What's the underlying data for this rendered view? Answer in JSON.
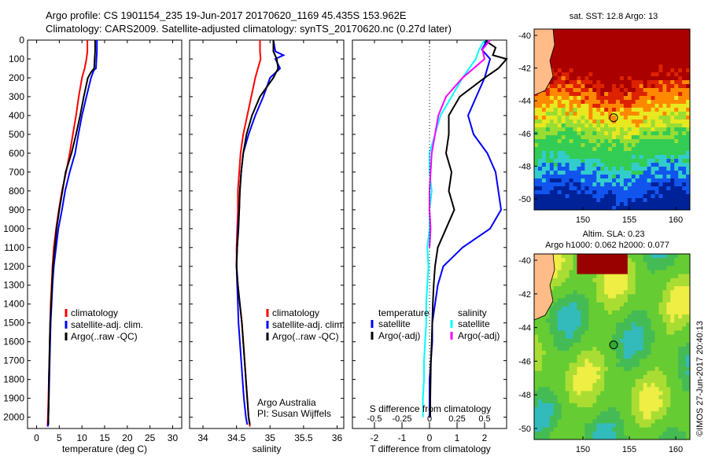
{
  "header": {
    "line1": "Argo profile: CS 1901154_235 19-Jun-2017 20170620_1169 45.435S 153.962E",
    "line2": "Climatology: CARS2009. Satellite-adjusted climatology: synTS_20170620.nc (0.27d later)"
  },
  "colors": {
    "climatology": "#ff0000",
    "satellite": "#0000ff",
    "argo": "#000000",
    "salinity_satellite": "#00ffff",
    "salinity_argo": "#ff00ff"
  },
  "depth_axis": {
    "ticks": [
      "0",
      "100",
      "200",
      "300",
      "400",
      "500",
      "600",
      "700",
      "800",
      "900",
      "1000",
      "1100",
      "1200",
      "1300",
      "1400",
      "1500",
      "1600",
      "1700",
      "1800",
      "1900",
      "2000"
    ],
    "ylim": [
      0,
      2060
    ]
  },
  "chart_data": [
    {
      "type": "line",
      "id": "temperature",
      "xlabel": "temperature (deg C)",
      "xlim": [
        -2,
        32
      ],
      "xticks": [
        "0",
        "5",
        "10",
        "15",
        "20",
        "25",
        "30"
      ],
      "xtick_values": [
        0,
        5,
        10,
        15,
        20,
        25,
        30
      ],
      "legend": [
        "climatology",
        "satellite-adj. clim.",
        "Argo(..raw -QC)"
      ],
      "series": [
        {
          "name": "climatology",
          "color": "#ff0000",
          "depth": [
            0,
            60,
            100,
            150,
            200,
            300,
            400,
            500,
            600,
            700,
            800,
            900,
            1000,
            1100,
            1200,
            1300,
            1400,
            1500,
            1600,
            1700,
            1800,
            1900,
            2000,
            2050
          ],
          "values": [
            11.2,
            11.2,
            11.0,
            10.6,
            10.0,
            9.3,
            8.7,
            8.0,
            7.3,
            6.5,
            5.6,
            4.9,
            4.3,
            3.8,
            3.5,
            3.3,
            3.1,
            3.0,
            2.9,
            2.8,
            2.7,
            2.6,
            2.5,
            2.4
          ]
        },
        {
          "name": "satellite-adj. clim.",
          "color": "#0000ff",
          "depth": [
            0,
            60,
            100,
            150,
            160,
            200,
            300,
            400,
            500,
            600,
            700,
            800,
            900,
            1000,
            1100,
            1200,
            1300,
            1400,
            1500,
            1600,
            1700,
            1800,
            1900,
            2000,
            2050
          ],
          "values": [
            13.3,
            13.3,
            13.2,
            13.1,
            12.6,
            12.0,
            11.0,
            10.0,
            9.2,
            8.5,
            7.3,
            6.3,
            5.6,
            4.8,
            4.3,
            3.8,
            3.5,
            3.3,
            3.1,
            3.0,
            2.9,
            2.8,
            2.7,
            2.6,
            2.5
          ]
        },
        {
          "name": "Argo(..raw -QC)",
          "color": "#000000",
          "depth": [
            0,
            60,
            100,
            150,
            170,
            200,
            300,
            400,
            500,
            600,
            700,
            800,
            900,
            1000,
            1100,
            1200,
            1300,
            1400,
            1500,
            1600,
            1700,
            1800,
            1900,
            2000,
            2040
          ],
          "values": [
            12.9,
            12.9,
            12.8,
            12.7,
            12.0,
            11.3,
            10.4,
            9.6,
            8.7,
            7.7,
            6.4,
            5.7,
            5.0,
            4.4,
            4.0,
            3.6,
            3.4,
            3.2,
            3.0,
            2.9,
            2.8,
            2.7,
            2.7,
            2.6,
            2.6
          ]
        }
      ]
    },
    {
      "type": "line",
      "id": "salinity",
      "xlabel": "salinity",
      "xlim": [
        33.8,
        36.1
      ],
      "xticks": [
        "34",
        "34.5",
        "35",
        "35.5",
        "36"
      ],
      "xtick_values": [
        34,
        34.5,
        35,
        35.5,
        36
      ],
      "legend": [
        "climatology",
        "satellite-adj. clim.",
        "Argo(..raw -QC)"
      ],
      "annotation": [
        "Argo Australia",
        "PI: Susan Wijffels"
      ],
      "series": [
        {
          "name": "climatology",
          "color": "#ff0000",
          "depth": [
            0,
            60,
            100,
            150,
            200,
            300,
            400,
            500,
            600,
            700,
            800,
            900,
            1000,
            1100,
            1200,
            1300,
            1400,
            1500,
            1600,
            1700,
            1800,
            1900,
            2000,
            2050
          ],
          "values": [
            34.85,
            34.85,
            34.86,
            34.82,
            34.78,
            34.72,
            34.66,
            34.6,
            34.56,
            34.54,
            34.52,
            34.52,
            34.51,
            34.5,
            34.5,
            34.52,
            34.55,
            34.58,
            34.6,
            34.62,
            34.64,
            34.66,
            34.68,
            34.7
          ]
        },
        {
          "name": "satellite-adj. clim.",
          "color": "#0000ff",
          "depth": [
            0,
            60,
            80,
            100,
            150,
            200,
            300,
            400,
            500,
            600,
            700,
            800,
            900,
            1000,
            1100,
            1200,
            1300,
            1400,
            1500,
            1600,
            1700,
            1800,
            1900,
            2000,
            2040
          ],
          "values": [
            35.05,
            35.08,
            35.2,
            35.08,
            35.15,
            35.0,
            34.9,
            34.78,
            34.68,
            34.6,
            34.57,
            34.55,
            34.54,
            34.52,
            34.51,
            34.5,
            34.51,
            34.52,
            34.53,
            34.55,
            34.57,
            34.59,
            34.61,
            34.64,
            34.66
          ]
        },
        {
          "name": "Argo(..raw -QC)",
          "color": "#000000",
          "depth": [
            0,
            60,
            100,
            150,
            200,
            300,
            400,
            500,
            600,
            700,
            800,
            900,
            1000,
            1100,
            1200,
            1300,
            1400,
            1500,
            1600,
            1700,
            1800,
            1900,
            2000,
            2040
          ],
          "values": [
            35.05,
            35.05,
            35.1,
            35.12,
            35.05,
            34.85,
            34.73,
            34.65,
            34.6,
            34.57,
            34.55,
            34.54,
            34.53,
            34.51,
            34.5,
            34.52,
            34.55,
            34.58,
            34.6,
            34.62,
            34.64,
            34.66,
            34.68,
            34.7
          ]
        }
      ]
    },
    {
      "type": "line",
      "id": "difference",
      "xlabel": "T difference from climatology",
      "xlabel_top": "S difference from climatology",
      "xlim": [
        -2.8,
        2.8
      ],
      "xticks": [
        "-2",
        "-1",
        "0",
        "1",
        "2"
      ],
      "xtick_values": [
        -2,
        -1,
        0,
        1,
        2
      ],
      "sticks": [
        "-0.5",
        "-0.25",
        "0",
        "0.25",
        "0.5"
      ],
      "stick_values": [
        -0.5,
        -0.25,
        0,
        0.25,
        0.5
      ],
      "legend_left_title": "temperature",
      "legend_right_title": "salinity",
      "legend_left": [
        "satellite",
        "Argo(-adj)"
      ],
      "legend_right": [
        "satellite",
        "Argo(-adj)"
      ],
      "series": [
        {
          "name": "temperature satellite",
          "color": "#0000ff",
          "depth": [
            0,
            50,
            100,
            200,
            300,
            400,
            500,
            600,
            700,
            800,
            900,
            1000,
            1100,
            1200,
            1300,
            1400,
            1500,
            1600,
            1700,
            1800,
            1900,
            2000
          ],
          "values": [
            2.1,
            1.9,
            2.2,
            2.0,
            1.7,
            1.4,
            1.6,
            2.1,
            2.4,
            2.5,
            2.6,
            2.2,
            1.2,
            0.5,
            0.3,
            0.2,
            0.1,
            0.1,
            0.05,
            0.0,
            0.0,
            0.0
          ]
        },
        {
          "name": "temperature Argo(-adj)",
          "color": "#000000",
          "depth": [
            0,
            40,
            80,
            100,
            150,
            200,
            300,
            400,
            500,
            600,
            700,
            800,
            900,
            1000,
            1100,
            1200,
            1300,
            1400,
            1500,
            1600,
            1700,
            1800,
            1900,
            2000
          ],
          "values": [
            2.0,
            2.4,
            2.3,
            2.8,
            2.5,
            2.0,
            1.1,
            0.7,
            0.7,
            0.6,
            0.8,
            0.7,
            0.9,
            0.6,
            0.3,
            0.2,
            0.15,
            0.12,
            0.1,
            0.08,
            0.05,
            0.04,
            0.03,
            0.03
          ]
        },
        {
          "name": "salinity satellite",
          "color": "#00ffff",
          "depth": [
            0,
            50,
            100,
            200,
            300,
            400,
            500,
            600,
            700,
            800,
            900,
            1000,
            1100,
            1200,
            1300,
            1400,
            1500,
            1600,
            1700,
            1800,
            1900,
            2000
          ],
          "values": [
            0.5,
            0.45,
            0.42,
            0.3,
            0.2,
            0.1,
            0.05,
            0.0,
            0.0,
            0.02,
            0.0,
            0.0,
            -0.02,
            -0.01,
            -0.02,
            -0.03,
            -0.03,
            -0.04,
            -0.05,
            -0.05,
            -0.06,
            -0.06
          ]
        },
        {
          "name": "salinity Argo(-adj)",
          "color": "#ff00ff",
          "depth": [
            0,
            50,
            100,
            200,
            300,
            400,
            500,
            600,
            700,
            800,
            900,
            1000,
            1100
          ],
          "values": [
            0.55,
            0.48,
            0.5,
            0.3,
            0.15,
            0.08,
            0.05,
            0.02,
            0.01,
            0.0,
            0.0,
            0.01,
            0.0
          ]
        }
      ]
    }
  ],
  "maps": {
    "top": {
      "title": "sat. SST: 12.8  Argo: 13",
      "yticks": [
        "-40",
        "-42",
        "-44",
        "-46",
        "-48",
        "-50"
      ],
      "xticks": [
        "150",
        "155",
        "160"
      ]
    },
    "bottom": {
      "title1": "Altim. SLA: 0.23",
      "title2": "Argo h1000: 0.062 h2000: 0.077",
      "yticks": [
        "-40",
        "-42",
        "-44",
        "-46",
        "-48",
        "-50"
      ],
      "xticks": [
        "150",
        "155",
        "160"
      ]
    },
    "credit": "©IMOS 27-Jun-2017 20:40:13"
  }
}
